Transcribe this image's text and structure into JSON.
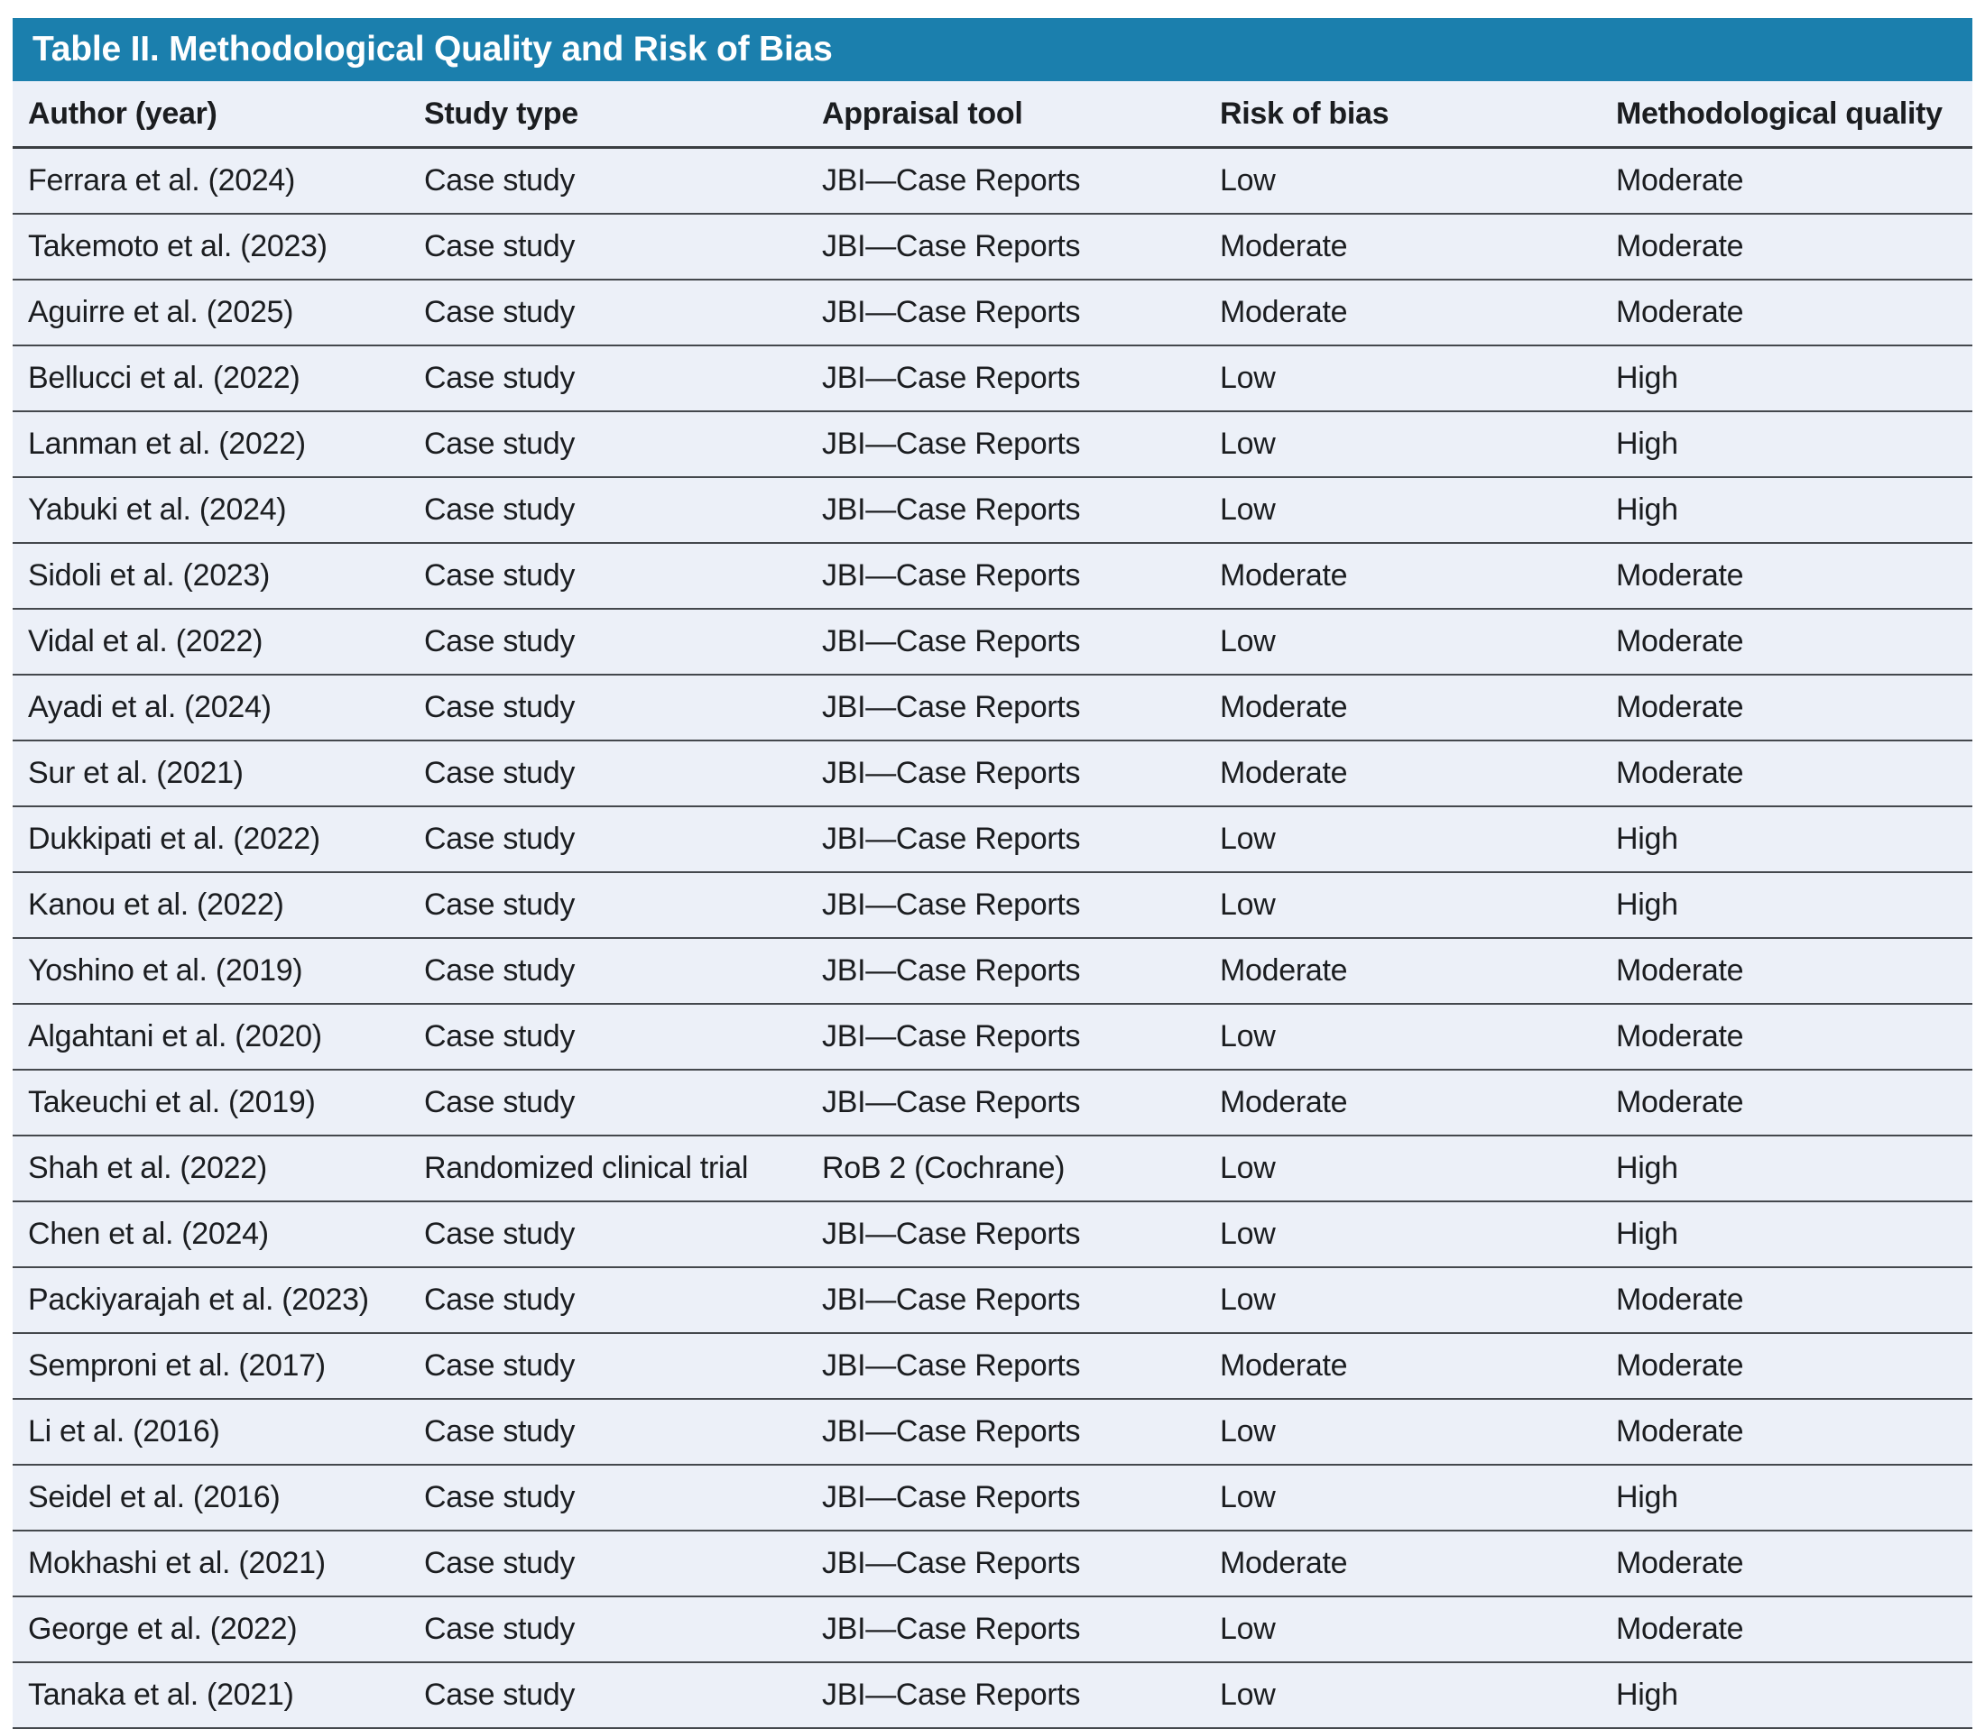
{
  "colors": {
    "title_bar_bg": "#1b7fad",
    "title_text": "#ffffff",
    "row_bg": "#ecf0f8",
    "rule_dark": "#3a3e42",
    "text": "#1b1d20"
  },
  "table": {
    "title": "Table II. Methodological Quality and Risk of Bias",
    "columns": [
      "Author (year)",
      "Study type",
      "Appraisal tool",
      "Risk of bias",
      "Methodological quality"
    ],
    "rows": [
      {
        "author": "Ferrara et al. (2024)",
        "study_type": "Case study",
        "appraisal_tool": "JBI—Case Reports",
        "risk_of_bias": "Low",
        "methodological_quality": "Moderate"
      },
      {
        "author": "Takemoto et al. (2023)",
        "study_type": "Case study",
        "appraisal_tool": "JBI—Case Reports",
        "risk_of_bias": "Moderate",
        "methodological_quality": "Moderate"
      },
      {
        "author": "Aguirre et al. (2025)",
        "study_type": "Case study",
        "appraisal_tool": "JBI—Case Reports",
        "risk_of_bias": "Moderate",
        "methodological_quality": "Moderate"
      },
      {
        "author": "Bellucci et al. (2022)",
        "study_type": "Case study",
        "appraisal_tool": "JBI—Case Reports",
        "risk_of_bias": "Low",
        "methodological_quality": "High"
      },
      {
        "author": "Lanman et al. (2022)",
        "study_type": "Case study",
        "appraisal_tool": "JBI—Case Reports",
        "risk_of_bias": "Low",
        "methodological_quality": "High"
      },
      {
        "author": "Yabuki et al. (2024)",
        "study_type": "Case study",
        "appraisal_tool": "JBI—Case Reports",
        "risk_of_bias": "Low",
        "methodological_quality": "High"
      },
      {
        "author": "Sidoli et al. (2023)",
        "study_type": "Case study",
        "appraisal_tool": "JBI—Case Reports",
        "risk_of_bias": "Moderate",
        "methodological_quality": "Moderate"
      },
      {
        "author": "Vidal et al. (2022)",
        "study_type": "Case study",
        "appraisal_tool": "JBI—Case Reports",
        "risk_of_bias": "Low",
        "methodological_quality": "Moderate"
      },
      {
        "author": "Ayadi et al. (2024)",
        "study_type": "Case study",
        "appraisal_tool": "JBI—Case Reports",
        "risk_of_bias": "Moderate",
        "methodological_quality": "Moderate"
      },
      {
        "author": "Sur et al. (2021)",
        "study_type": "Case study",
        "appraisal_tool": "JBI—Case Reports",
        "risk_of_bias": "Moderate",
        "methodological_quality": "Moderate"
      },
      {
        "author": "Dukkipati et al. (2022)",
        "study_type": "Case study",
        "appraisal_tool": "JBI—Case Reports",
        "risk_of_bias": "Low",
        "methodological_quality": "High"
      },
      {
        "author": "Kanou et al. (2022)",
        "study_type": "Case study",
        "appraisal_tool": "JBI—Case Reports",
        "risk_of_bias": "Low",
        "methodological_quality": "High"
      },
      {
        "author": "Yoshino et al. (2019)",
        "study_type": "Case study",
        "appraisal_tool": "JBI—Case Reports",
        "risk_of_bias": "Moderate",
        "methodological_quality": "Moderate"
      },
      {
        "author": "Algahtani et al. (2020)",
        "study_type": "Case study",
        "appraisal_tool": "JBI—Case Reports",
        "risk_of_bias": "Low",
        "methodological_quality": "Moderate"
      },
      {
        "author": "Takeuchi et al. (2019)",
        "study_type": "Case study",
        "appraisal_tool": "JBI—Case Reports",
        "risk_of_bias": "Moderate",
        "methodological_quality": "Moderate"
      },
      {
        "author": "Shah et al. (2022)",
        "study_type": "Randomized clinical trial",
        "appraisal_tool": "RoB 2 (Cochrane)",
        "risk_of_bias": "Low",
        "methodological_quality": "High"
      },
      {
        "author": "Chen et al. (2024)",
        "study_type": "Case study",
        "appraisal_tool": "JBI—Case Reports",
        "risk_of_bias": "Low",
        "methodological_quality": "High"
      },
      {
        "author": "Packiyarajah et al. (2023)",
        "study_type": "Case study",
        "appraisal_tool": "JBI—Case Reports",
        "risk_of_bias": "Low",
        "methodological_quality": "Moderate"
      },
      {
        "author": "Semproni et al. (2017)",
        "study_type": "Case study",
        "appraisal_tool": "JBI—Case Reports",
        "risk_of_bias": "Moderate",
        "methodological_quality": "Moderate"
      },
      {
        "author": "Li et al. (2016)",
        "study_type": "Case study",
        "appraisal_tool": "JBI—Case Reports",
        "risk_of_bias": "Low",
        "methodological_quality": "Moderate"
      },
      {
        "author": "Seidel et al. (2016)",
        "study_type": "Case study",
        "appraisal_tool": "JBI—Case Reports",
        "risk_of_bias": "Low",
        "methodological_quality": "High"
      },
      {
        "author": "Mokhashi et al. (2021)",
        "study_type": "Case study",
        "appraisal_tool": "JBI—Case Reports",
        "risk_of_bias": "Moderate",
        "methodological_quality": "Moderate"
      },
      {
        "author": "George et al. (2022)",
        "study_type": "Case study",
        "appraisal_tool": "JBI—Case Reports",
        "risk_of_bias": "Low",
        "methodological_quality": "Moderate"
      },
      {
        "author": "Tanaka et al. (2021)",
        "study_type": "Case study",
        "appraisal_tool": "JBI—Case Reports",
        "risk_of_bias": "Low",
        "methodological_quality": "High"
      }
    ]
  }
}
